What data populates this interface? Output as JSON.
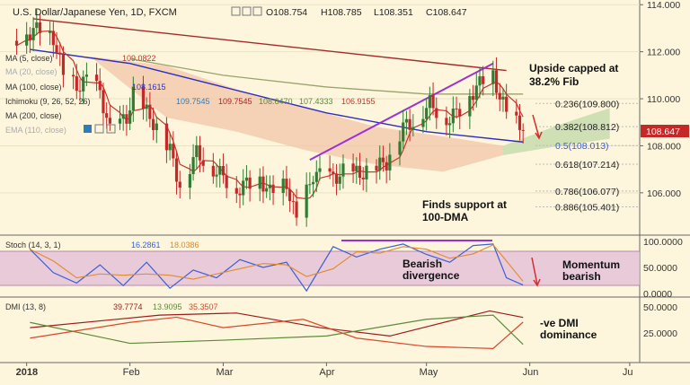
{
  "header": {
    "title": "U.S. Dollar/Japanese Yen, 1D, FXCM",
    "ohlc": [
      {
        "label": "O",
        "value": "108.754"
      },
      {
        "label": "H",
        "value": "108.785"
      },
      {
        "label": "L",
        "value": "108.351"
      },
      {
        "label": "C",
        "value": "108.647"
      }
    ]
  },
  "legend": {
    "ma5": {
      "label": "MA (5, close)",
      "value": "109.0822"
    },
    "ma_hidden": {
      "label": "MA (20, close)"
    },
    "ma100": {
      "label": "MA (100, close)",
      "value": "108.1615"
    },
    "ichimoku": {
      "label": "Ichimoku (9, 26, 52, 26)",
      "values": [
        "109.7545",
        "109.7545",
        "108.6470",
        "107.4333",
        "106.9155"
      ]
    },
    "ma200": {
      "label": "MA (200, close)"
    },
    "ema110": {
      "label": "EMA (110, close)"
    }
  },
  "annotations": {
    "fib_capped": [
      "Upside capped at",
      "38.2% Fib"
    ],
    "support": [
      "Finds support at",
      "100-DMA"
    ],
    "bearish_div": [
      "Bearish",
      "divergence"
    ],
    "momentum": [
      "Momentum",
      "bearish"
    ],
    "dmi_dom": [
      "-ve DMI",
      "dominance"
    ]
  },
  "fib_levels": [
    {
      "label": "0.236(109.800)",
      "value": 109.8
    },
    {
      "label": "0.382(108.812)",
      "value": 108.812
    },
    {
      "label": "0.5(108.013)",
      "value": 108.013
    },
    {
      "label": "0.618(107.214)",
      "value": 107.214
    },
    {
      "label": "0.786(106.077)",
      "value": 106.077
    },
    {
      "label": "0.886(105.401)",
      "value": 105.401
    }
  ],
  "price_tag": "108.647",
  "stoch": {
    "label": "Stoch (14, 3, 1)",
    "k": "16.2861",
    "d": "18.0386",
    "ticks": [
      "100.0000",
      "50.0000",
      "0.0000"
    ]
  },
  "dmi": {
    "label": "DMI (13, 8)",
    "values": [
      "39.7774",
      "13.9095",
      "35.3507"
    ],
    "ticks": [
      "50.0000",
      "25.0000"
    ]
  },
  "x_axis": {
    "labels": [
      "2018",
      "Feb",
      "Mar",
      "Apr",
      "May",
      "Jun",
      "Ju"
    ]
  },
  "colors": {
    "candle_up": "#2e7d32",
    "candle_down": "#c62828",
    "ma5": "#c0392b",
    "ma100": "#2d2dbe",
    "ma200": "#9aa36b",
    "trendline_down": "#a52a2a",
    "trendline_up": "#9b30d9",
    "cloud_bear": "#f2c6a8",
    "cloud_bull": "#c9e3b5",
    "stoch_k": "#3b5fd6",
    "stoch_d": "#e08a2e",
    "stoch_band": "#e2bfd8",
    "dmi_plus": "#5a8a3a",
    "dmi_minus": "#d9472b",
    "adx": "#9b1c1c"
  },
  "chart_data": {
    "type": "candlestick",
    "title": "U.S. Dollar/Japanese Yen, 1D, FXCM",
    "y_axis": {
      "ticks": [
        106,
        108,
        110,
        112,
        114
      ],
      "ylim": [
        104.2,
        114.2
      ]
    },
    "x_axis_labels": [
      "2018",
      "Feb",
      "Mar",
      "Apr",
      "May",
      "Jun",
      "Ju"
    ],
    "close_path": [
      {
        "date": "2017-12-29",
        "close": 112.6
      },
      {
        "date": "2018-01-05",
        "close": 113.0
      },
      {
        "date": "2018-01-09",
        "close": 112.6
      },
      {
        "date": "2018-01-12",
        "close": 111.0
      },
      {
        "date": "2018-01-16",
        "close": 110.5
      },
      {
        "date": "2018-01-19",
        "close": 110.8
      },
      {
        "date": "2018-01-23",
        "close": 110.3
      },
      {
        "date": "2018-01-26",
        "close": 108.6
      },
      {
        "date": "2018-01-31",
        "close": 109.2
      },
      {
        "date": "2018-02-02",
        "close": 110.2
      },
      {
        "date": "2018-02-06",
        "close": 109.4
      },
      {
        "date": "2018-02-09",
        "close": 108.8
      },
      {
        "date": "2018-02-13",
        "close": 107.8
      },
      {
        "date": "2018-02-16",
        "close": 106.3
      },
      {
        "date": "2018-02-21",
        "close": 107.7
      },
      {
        "date": "2018-02-26",
        "close": 107.0
      },
      {
        "date": "2018-03-01",
        "close": 106.7
      },
      {
        "date": "2018-03-05",
        "close": 106.1
      },
      {
        "date": "2018-03-08",
        "close": 106.4
      },
      {
        "date": "2018-03-12",
        "close": 106.6
      },
      {
        "date": "2018-03-15",
        "close": 106.0
      },
      {
        "date": "2018-03-20",
        "close": 106.4
      },
      {
        "date": "2018-03-23",
        "close": 104.8
      },
      {
        "date": "2018-03-28",
        "close": 106.8
      },
      {
        "date": "2018-04-03",
        "close": 106.6
      },
      {
        "date": "2018-04-06",
        "close": 106.9
      },
      {
        "date": "2018-04-11",
        "close": 106.8
      },
      {
        "date": "2018-04-16",
        "close": 107.1
      },
      {
        "date": "2018-04-19",
        "close": 107.3
      },
      {
        "date": "2018-04-24",
        "close": 108.8
      },
      {
        "date": "2018-04-27",
        "close": 109.0
      },
      {
        "date": "2018-05-02",
        "close": 109.8
      },
      {
        "date": "2018-05-07",
        "close": 109.1
      },
      {
        "date": "2018-05-10",
        "close": 109.4
      },
      {
        "date": "2018-05-15",
        "close": 110.3
      },
      {
        "date": "2018-05-18",
        "close": 110.8
      },
      {
        "date": "2018-05-21",
        "close": 111.0
      },
      {
        "date": "2018-05-23",
        "close": 110.1
      },
      {
        "date": "2018-05-25",
        "close": 109.4
      },
      {
        "date": "2018-05-29",
        "close": 108.8
      },
      {
        "date": "2018-05-30",
        "close": 108.647
      }
    ],
    "overlays": {
      "ma100_path": [
        {
          "date": "2018-01-02",
          "value": 112.1
        },
        {
          "date": "2018-02-01",
          "value": 111.5
        },
        {
          "date": "2018-03-01",
          "value": 110.5
        },
        {
          "date": "2018-04-01",
          "value": 109.4
        },
        {
          "date": "2018-05-01",
          "value": 108.6
        },
        {
          "date": "2018-05-30",
          "value": 108.16
        }
      ],
      "ma200_path": [
        {
          "date": "2018-02-01",
          "value": 111.7
        },
        {
          "date": "2018-03-01",
          "value": 111.0
        },
        {
          "date": "2018-04-01",
          "value": 110.5
        },
        {
          "date": "2018-05-01",
          "value": 110.2
        },
        {
          "date": "2018-05-30",
          "value": 110.2
        }
      ],
      "trendline_down": [
        {
          "date": "2018-01-03",
          "value": 113.4
        },
        {
          "date": "2018-05-25",
          "value": 111.2
        }
      ],
      "trendline_up": [
        {
          "date": "2018-03-27",
          "value": 107.4
        },
        {
          "date": "2018-05-21",
          "value": 111.5
        }
      ],
      "cloud": [
        {
          "date": "2018-01-20",
          "top": 111.8,
          "bottom": 111.8
        },
        {
          "date": "2018-02-12",
          "top": 111.4,
          "bottom": 109.2
        },
        {
          "date": "2018-03-05",
          "top": 110.4,
          "bottom": 108.6
        },
        {
          "date": "2018-03-26",
          "top": 109.6,
          "bottom": 107.8
        },
        {
          "date": "2018-04-16",
          "top": 108.8,
          "bottom": 107.2
        },
        {
          "date": "2018-05-06",
          "top": 108.4,
          "bottom": 106.9
        },
        {
          "date": "2018-05-24",
          "top": 108.0,
          "bottom": 107.6
        },
        {
          "date": "2018-06-10",
          "top": 108.9,
          "bottom": 108.0
        },
        {
          "date": "2018-06-25",
          "top": 109.6,
          "bottom": 108.3
        }
      ]
    },
    "stoch_k_path": [
      {
        "date": "2018-01-02",
        "value": 85
      },
      {
        "date": "2018-01-09",
        "value": 40
      },
      {
        "date": "2018-01-16",
        "value": 20
      },
      {
        "date": "2018-01-23",
        "value": 55
      },
      {
        "date": "2018-01-30",
        "value": 15
      },
      {
        "date": "2018-02-06",
        "value": 60
      },
      {
        "date": "2018-02-13",
        "value": 10
      },
      {
        "date": "2018-02-20",
        "value": 45
      },
      {
        "date": "2018-02-27",
        "value": 30
      },
      {
        "date": "2018-03-06",
        "value": 65
      },
      {
        "date": "2018-03-13",
        "value": 50
      },
      {
        "date": "2018-03-20",
        "value": 60
      },
      {
        "date": "2018-03-26",
        "value": 5
      },
      {
        "date": "2018-04-03",
        "value": 90
      },
      {
        "date": "2018-04-10",
        "value": 70
      },
      {
        "date": "2018-04-17",
        "value": 85
      },
      {
        "date": "2018-04-24",
        "value": 95
      },
      {
        "date": "2018-05-01",
        "value": 75
      },
      {
        "date": "2018-05-08",
        "value": 60
      },
      {
        "date": "2018-05-15",
        "value": 92
      },
      {
        "date": "2018-05-21",
        "value": 95
      },
      {
        "date": "2018-05-25",
        "value": 30
      },
      {
        "date": "2018-05-30",
        "value": 16.29
      }
    ],
    "dmi_minus_path": [
      {
        "date": "2018-01-02",
        "value": 20
      },
      {
        "date": "2018-02-01",
        "value": 35
      },
      {
        "date": "2018-02-15",
        "value": 40
      },
      {
        "date": "2018-03-01",
        "value": 30
      },
      {
        "date": "2018-03-25",
        "value": 38
      },
      {
        "date": "2018-04-10",
        "value": 20
      },
      {
        "date": "2018-05-01",
        "value": 12
      },
      {
        "date": "2018-05-21",
        "value": 10
      },
      {
        "date": "2018-05-30",
        "value": 35.35
      }
    ],
    "dmi_plus_path": [
      {
        "date": "2018-01-02",
        "value": 35
      },
      {
        "date": "2018-02-01",
        "value": 15
      },
      {
        "date": "2018-03-01",
        "value": 18
      },
      {
        "date": "2018-04-01",
        "value": 22
      },
      {
        "date": "2018-05-01",
        "value": 38
      },
      {
        "date": "2018-05-21",
        "value": 42
      },
      {
        "date": "2018-05-30",
        "value": 13.91
      }
    ],
    "adx_path": [
      {
        "date": "2018-01-02",
        "value": 30
      },
      {
        "date": "2018-02-10",
        "value": 42
      },
      {
        "date": "2018-03-05",
        "value": 44
      },
      {
        "date": "2018-03-30",
        "value": 30
      },
      {
        "date": "2018-04-20",
        "value": 22
      },
      {
        "date": "2018-05-20",
        "value": 46
      },
      {
        "date": "2018-05-30",
        "value": 39.78
      }
    ]
  }
}
